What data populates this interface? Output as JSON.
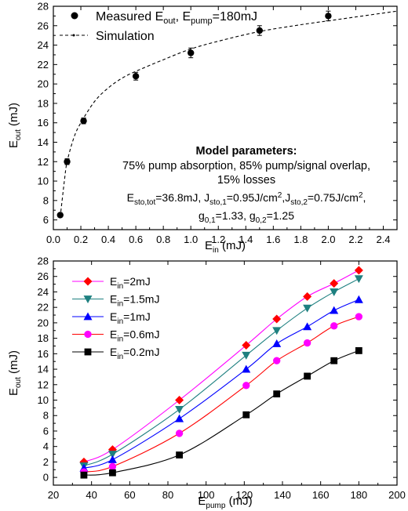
{
  "chart_data": [
    {
      "type": "scatter",
      "xlabel": "E_in (mJ)",
      "ylabel": "E_out (mJ)",
      "xlim": [
        0,
        2.5
      ],
      "ylim": [
        5,
        28
      ],
      "xticks": [
        0,
        0.2,
        0.4,
        0.6,
        0.8,
        1.0,
        1.2,
        1.4,
        1.6,
        1.8,
        2.0,
        2.2,
        2.4
      ],
      "yticks": [
        6,
        8,
        10,
        12,
        14,
        16,
        18,
        20,
        22,
        24,
        26,
        28
      ],
      "legend": [
        {
          "label": "Measured E_out, E_pump=180mJ",
          "style": "black-circle"
        },
        {
          "label": "Simulation",
          "style": "dashed"
        }
      ],
      "legend_position": "top-left",
      "series": [
        {
          "name": "Measured E_out, E_pump=180mJ",
          "x": [
            0.05,
            0.1,
            0.22,
            0.6,
            1.0,
            1.5,
            2.0
          ],
          "y": [
            6.5,
            12.0,
            16.2,
            20.8,
            23.2,
            25.5,
            27.0
          ],
          "err": [
            0.2,
            0.3,
            0.3,
            0.4,
            0.5,
            0.5,
            0.5
          ]
        },
        {
          "name": "Simulation",
          "x": [
            0.05,
            0.08,
            0.1,
            0.15,
            0.2,
            0.3,
            0.4,
            0.5,
            0.6,
            0.8,
            1.0,
            1.2,
            1.5,
            1.8,
            2.0,
            2.2,
            2.5
          ],
          "y": [
            6.3,
            10.0,
            12.0,
            14.5,
            16.0,
            18.2,
            19.6,
            20.6,
            21.3,
            22.5,
            23.6,
            24.4,
            25.4,
            26.1,
            26.5,
            26.9,
            27.5
          ]
        }
      ],
      "annotation": {
        "heading": "Model parameters:",
        "line1": "75% pump absorption, 85% pump/signal overlap,",
        "line2": "15% losses",
        "line3": "E_sto,tot=36.8mJ, J_sto,1=0.95J/cm², J_sto,2=0.75J/cm²,",
        "line4": "g_0,1=1.33, g_0,2=1.25"
      }
    },
    {
      "type": "line",
      "xlabel": "E_pump (mJ)",
      "ylabel": "E_out (mJ)",
      "xlim": [
        20,
        200
      ],
      "ylim": [
        -1,
        28
      ],
      "xticks": [
        20,
        40,
        60,
        80,
        100,
        120,
        140,
        160,
        180,
        200
      ],
      "yticks": [
        0,
        2,
        4,
        6,
        8,
        10,
        12,
        14,
        16,
        18,
        20,
        22,
        24,
        26,
        28
      ],
      "legend_position": "top-left",
      "x": [
        36,
        51,
        86,
        121,
        137,
        153,
        167,
        180
      ],
      "series": [
        {
          "name": "E_in=2mJ",
          "color": "#ff0000",
          "line": "#ff00ff",
          "marker": "diamond",
          "y": [
            2.0,
            3.6,
            10.0,
            17.1,
            20.5,
            23.4,
            25.1,
            26.8
          ]
        },
        {
          "name": "E_in=1.5mJ",
          "color": "#1e8080",
          "line": "#1e8080",
          "marker": "triangle-down",
          "y": [
            1.5,
            3.0,
            8.8,
            15.8,
            19.0,
            21.9,
            24.0,
            25.7
          ]
        },
        {
          "name": "E_in=1mJ",
          "color": "#0000ff",
          "line": "#0000ff",
          "marker": "triangle-up",
          "y": [
            1.2,
            2.3,
            7.6,
            14.0,
            17.3,
            19.5,
            21.6,
            23.0
          ]
        },
        {
          "name": "E_in=0.6mJ",
          "color": "#ff00ff",
          "line": "#ff0000",
          "marker": "circle",
          "y": [
            0.7,
            1.4,
            5.7,
            11.9,
            15.1,
            17.4,
            19.6,
            20.8
          ]
        },
        {
          "name": "E_in=0.2mJ",
          "color": "#000000",
          "line": "#000000",
          "marker": "square",
          "y": [
            0.3,
            0.6,
            2.9,
            8.1,
            10.8,
            13.1,
            15.1,
            16.4
          ]
        }
      ]
    }
  ]
}
